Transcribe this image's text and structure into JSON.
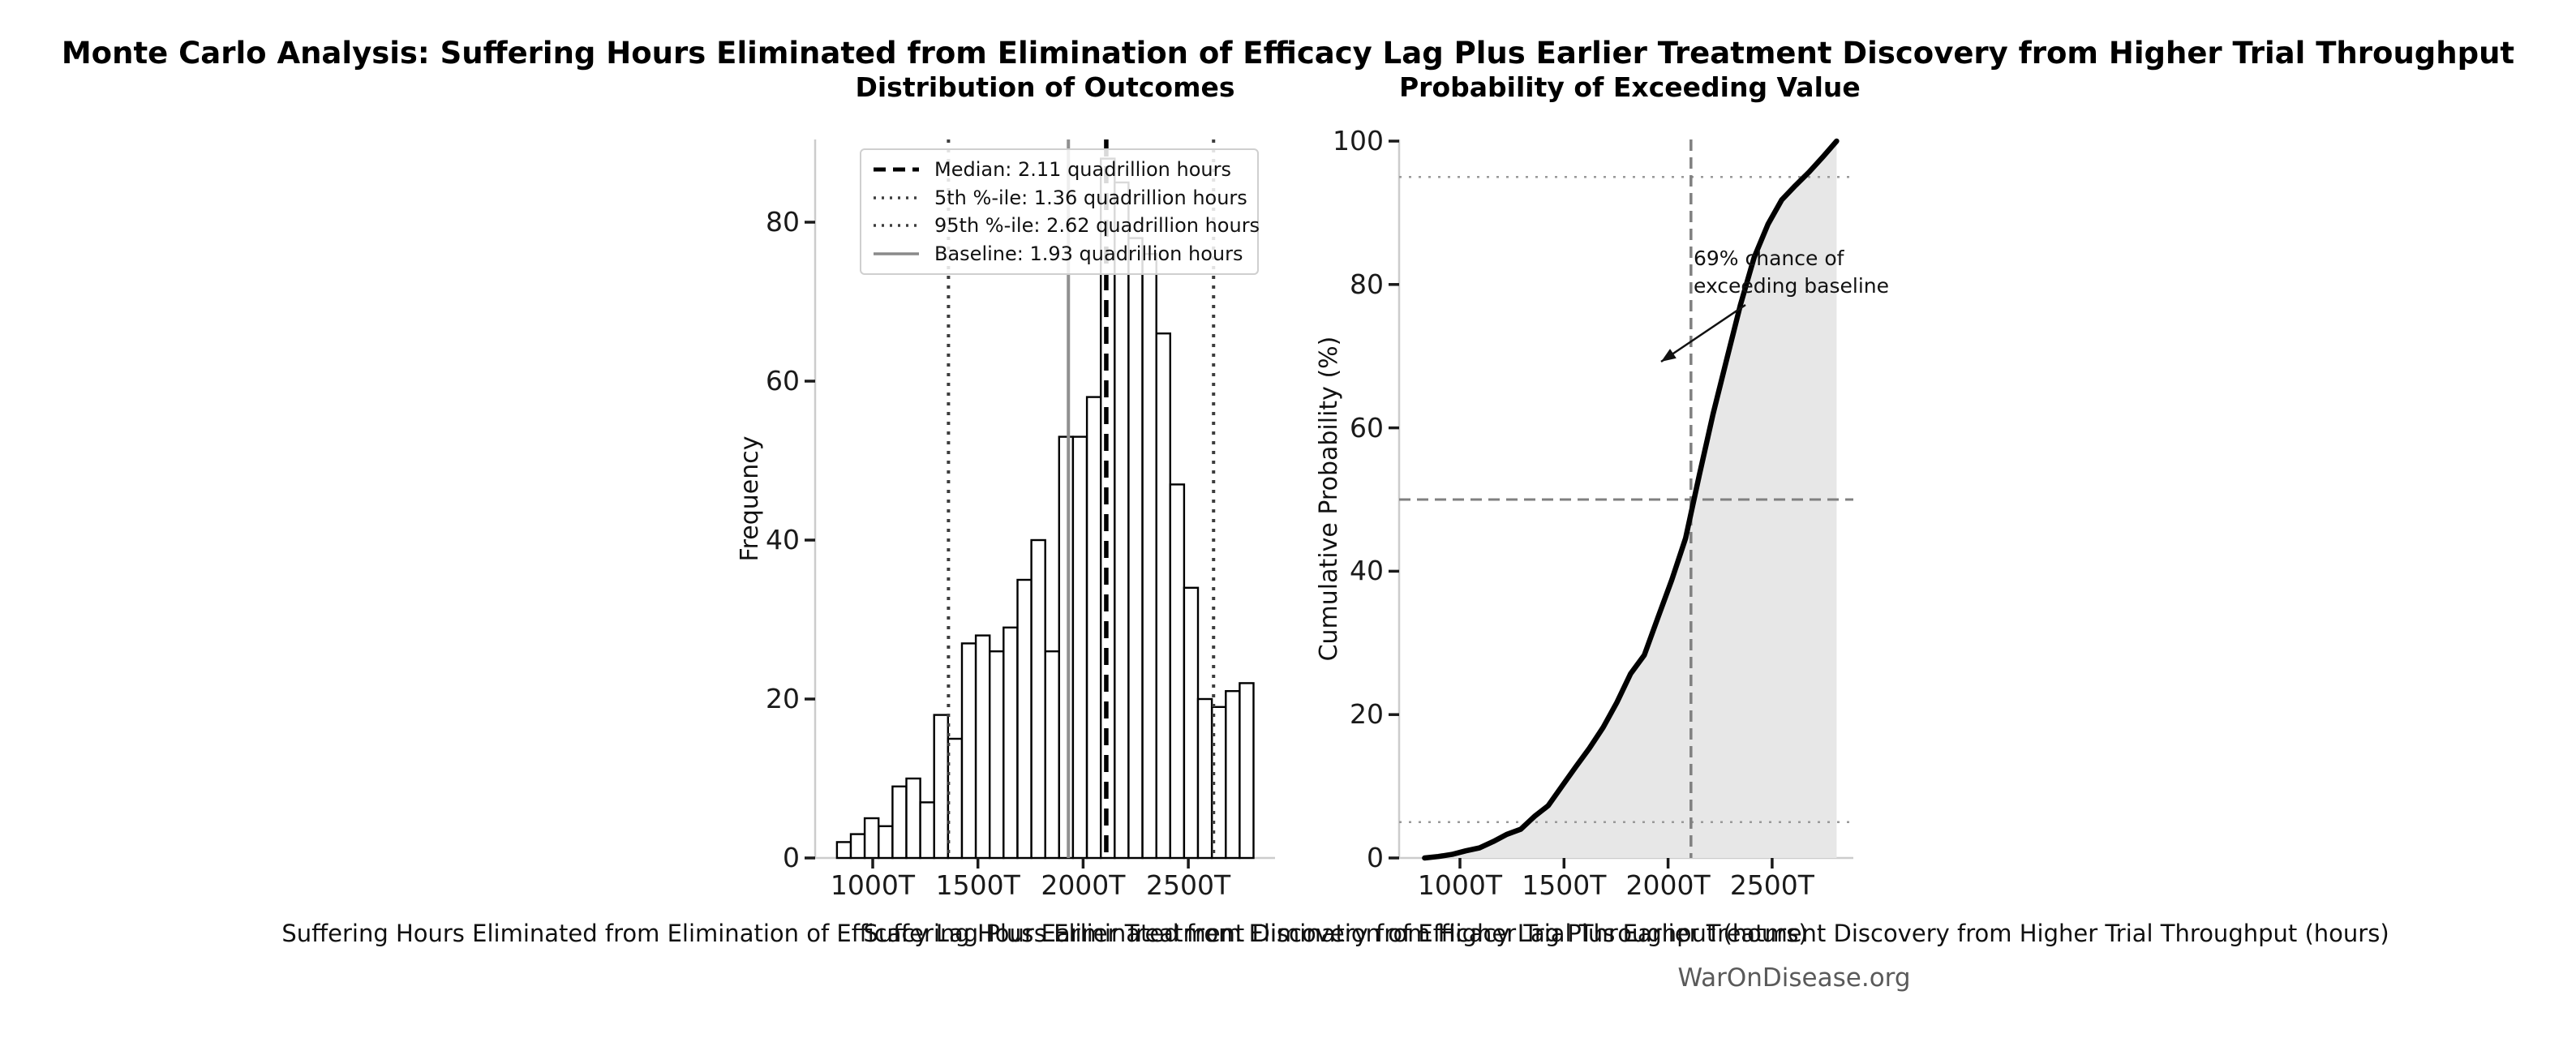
{
  "figure": {
    "suptitle": "Monte Carlo Analysis: Suffering Hours Eliminated from Elimination of Efficacy Lag Plus Earlier Treatment Discovery from Higher Trial Throughput",
    "watermark": "WarOnDisease.org"
  },
  "colors": {
    "bar_fill": "#ffffff",
    "bar_edge": "#000000",
    "median_line": "#000000",
    "percentile_line": "#3d3d3d",
    "baseline_line": "#909090",
    "cdf_line": "#000000",
    "shade": "#e7e7e7",
    "dashed_gray": "#808080",
    "dotted_gray": "#999999",
    "spine": "#cccccc",
    "tick_mark": "#1a1a1a",
    "watermark_gray": "#5a5a5a"
  },
  "left_plot": {
    "title": "Distribution of Outcomes",
    "ylabel": "Frequency",
    "xlabel": "Suffering Hours Eliminated from Elimination of Efficacy Lag Plus Earlier Treatment Discovery from Higher Trial Throughput (hours)",
    "xtick_labels": [
      "1000T",
      "1500T",
      "2000T",
      "2500T"
    ],
    "xtick_values": [
      1000,
      1500,
      2000,
      2500
    ],
    "ytick_labels": [
      "0",
      "20",
      "40",
      "60",
      "80"
    ],
    "ytick_values": [
      0,
      20,
      40,
      60,
      80
    ],
    "legend": [
      {
        "label": "Median: 2.11 quadrillion hours",
        "style": "dashed-black"
      },
      {
        "label": "5th %-ile: 1.36 quadrillion hours",
        "style": "dotted-gray"
      },
      {
        "label": "95th %-ile: 2.62 quadrillion hours",
        "style": "dotted-gray"
      },
      {
        "label": "Baseline: 1.93 quadrillion hours",
        "style": "solid-gray"
      }
    ]
  },
  "right_plot": {
    "title": "Probability of Exceeding Value",
    "ylabel": "Cumulative Probability (%)",
    "xlabel": "Suffering Hours Eliminated from Elimination of Efficacy Lag Plus Earlier Treatment Discovery from Higher Trial Throughput (hours)",
    "xtick_labels": [
      "1000T",
      "1500T",
      "2000T",
      "2500T"
    ],
    "xtick_values": [
      1000,
      1500,
      2000,
      2500
    ],
    "ytick_labels": [
      "0",
      "20",
      "40",
      "60",
      "80",
      "100"
    ],
    "ytick_values": [
      0,
      20,
      40,
      60,
      80,
      100
    ],
    "annotation_line1": "69% chance of",
    "annotation_line2": "exceeding baseline"
  },
  "chart_data": [
    {
      "type": "bar",
      "title": "Distribution of Outcomes",
      "xlabel": "Suffering Hours Eliminated from Elimination of Efficacy Lag Plus Earlier Treatment Discovery from Higher Trial Throughput (hours)",
      "ylabel": "Frequency",
      "units": "trillions of hours (T)",
      "bin_start": 830,
      "bin_width": 66,
      "values": [
        2,
        3,
        5,
        4,
        9,
        10,
        7,
        18,
        15,
        27,
        28,
        26,
        29,
        35,
        40,
        26,
        53,
        53,
        58,
        88,
        85,
        78,
        76,
        66,
        47,
        34,
        20,
        19,
        21,
        22
      ],
      "xlim": [
        731,
        2909
      ],
      "ylim": [
        0,
        90.4
      ],
      "grid": false,
      "legend_position": "upper-left",
      "vlines": {
        "median": 2110,
        "p5": 1360,
        "p95": 2620,
        "baseline": 1930
      },
      "stats": {
        "median_quadrillion": 2.11,
        "p5_quadrillion": 1.36,
        "p95_quadrillion": 2.62,
        "baseline_quadrillion": 1.93
      }
    },
    {
      "type": "line",
      "title": "Probability of Exceeding Value",
      "xlabel": "Suffering Hours Eliminated from Elimination of Efficacy Lag Plus Earlier Treatment Discovery from Higher Trial Throughput (hours)",
      "ylabel": "Cumulative Probability (%)",
      "x": [
        830,
        896,
        962,
        1028,
        1094,
        1160,
        1226,
        1292,
        1358,
        1424,
        1490,
        1556,
        1622,
        1688,
        1754,
        1820,
        1886,
        1952,
        2018,
        2084,
        2150,
        2216,
        2282,
        2348,
        2414,
        2480,
        2546,
        2612,
        2678,
        2744,
        2810
      ],
      "y": [
        0,
        0.2,
        0.5,
        1.0,
        1.4,
        2.3,
        3.3,
        4.0,
        5.8,
        7.3,
        10.0,
        12.7,
        15.3,
        18.2,
        21.7,
        25.7,
        28.3,
        33.6,
        38.8,
        44.6,
        53.4,
        61.9,
        69.6,
        77.2,
        83.8,
        88.4,
        91.8,
        93.8,
        95.7,
        97.8,
        100.0
      ],
      "xlim": [
        731,
        2909
      ],
      "ylim": [
        0,
        100
      ],
      "grid": false,
      "shade_under_curve": true,
      "shade_to": 2810,
      "hlines_dotted": [
        5,
        95
      ],
      "hline_dashed": 50,
      "vline_dashed_median": 2110,
      "annotation": "69% chance of exceeding baseline",
      "exceed_baseline_percent": 69
    }
  ]
}
